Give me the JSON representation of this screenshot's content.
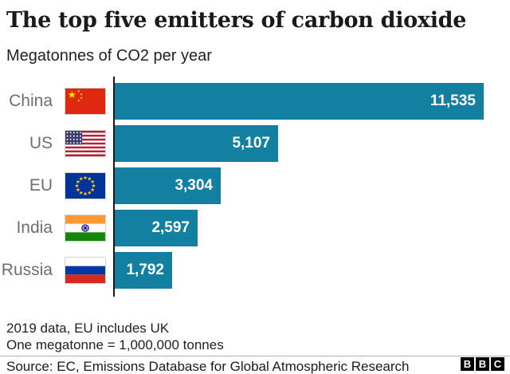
{
  "header": {
    "title": "The top five emitters of carbon dioxide",
    "subtitle": "Megatonnes of CO2 per year"
  },
  "chart_data": {
    "type": "bar",
    "orientation": "horizontal",
    "title": "The top five emitters of carbon dioxide",
    "xlabel": "",
    "ylabel": "",
    "units": "Megatonnes of CO2 per year",
    "categories": [
      "China",
      "US",
      "EU",
      "India",
      "Russia"
    ],
    "values": [
      11535,
      5107,
      3304,
      2597,
      1792
    ],
    "value_labels": [
      "11,535",
      "5,107",
      "3,304",
      "2,597",
      "1,792"
    ],
    "flags": [
      "china-flag",
      "us-flag",
      "eu-flag",
      "india-flag",
      "russia-flag"
    ],
    "xlim": [
      0,
      11535
    ],
    "grid": false,
    "legend": false,
    "bar_color": "#1380A1",
    "axis_color": "#1a1a1a",
    "label_color": "#6e6e73",
    "value_text_color": "#ffffff"
  },
  "footer": {
    "note_line1": "2019 data, EU includes UK",
    "note_line2": "One megatonne = 1,000,000 tonnes",
    "source": "Source: EC, Emissions Database for Global Atmospheric Research",
    "logo_letters": [
      "B",
      "B",
      "C"
    ]
  }
}
